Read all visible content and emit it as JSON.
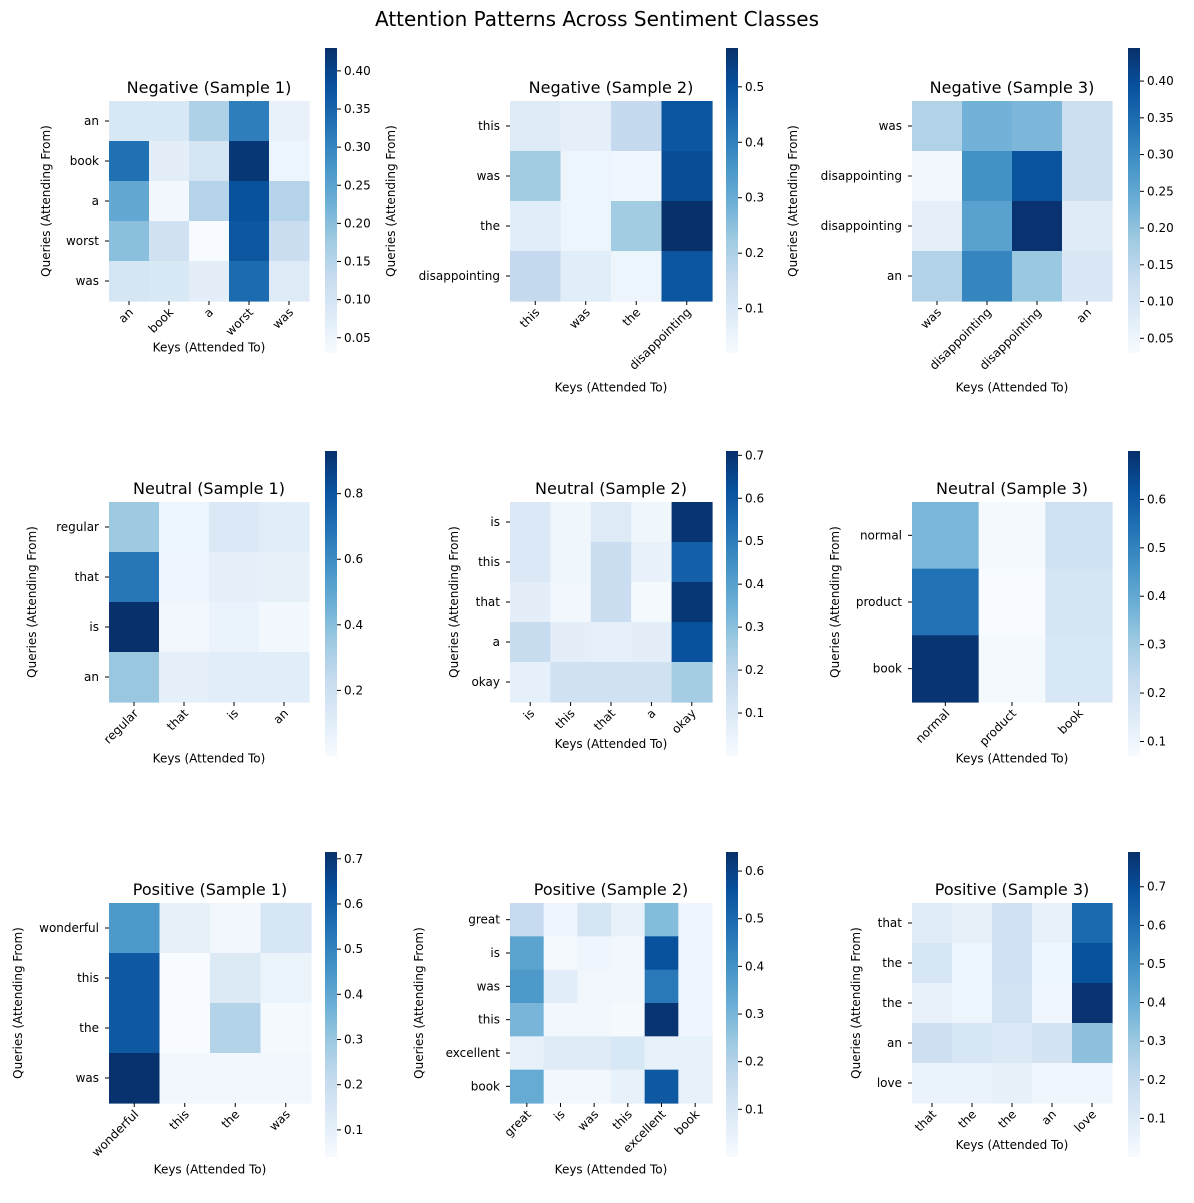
{
  "chart_data": {
    "title": "Attention Patterns Across Sentiment Classes",
    "type": "heatmap",
    "colormap": "Blues",
    "panels": [
      {
        "title": "Negative (Sample 1)",
        "xlabel": "Keys (Attended To)",
        "ylabel": "Queries (Attending From)",
        "x_labels": [
          "an",
          "book",
          "a",
          "worst",
          "was"
        ],
        "y_labels": [
          "an",
          "book",
          "a",
          "worst",
          "was"
        ],
        "values": [
          [
            0.09,
            0.09,
            0.16,
            0.31,
            0.06
          ],
          [
            0.33,
            0.07,
            0.1,
            0.42,
            0.05
          ],
          [
            0.24,
            0.04,
            0.15,
            0.38,
            0.15
          ],
          [
            0.2,
            0.11,
            0.03,
            0.37,
            0.12
          ],
          [
            0.1,
            0.09,
            0.07,
            0.34,
            0.08
          ]
        ],
        "vmin": 0.03,
        "vmax": 0.43,
        "cbar_ticks": [
          0.05,
          0.1,
          0.15,
          0.2,
          0.25,
          0.3,
          0.35,
          0.4
        ]
      },
      {
        "title": "Negative (Sample 2)",
        "xlabel": "Keys (Attended To)",
        "ylabel": "Queries (Attending From)",
        "x_labels": [
          "this",
          "was",
          "the",
          "disappointing"
        ],
        "y_labels": [
          "this",
          "was",
          "the",
          "disappointing"
        ],
        "values": [
          [
            0.09,
            0.07,
            0.16,
            0.49
          ],
          [
            0.22,
            0.05,
            0.04,
            0.51
          ],
          [
            0.08,
            0.05,
            0.22,
            0.57
          ],
          [
            0.16,
            0.08,
            0.05,
            0.49
          ]
        ],
        "vmin": 0.02,
        "vmax": 0.57,
        "cbar_ticks": [
          0.1,
          0.2,
          0.3,
          0.4,
          0.5
        ]
      },
      {
        "title": "Negative (Sample 3)",
        "xlabel": "Keys (Attended To)",
        "ylabel": "Queries (Attending From)",
        "x_labels": [
          "was",
          "disappointing",
          "disappointing",
          "an"
        ],
        "y_labels": [
          "was",
          "disappointing",
          "disappointing",
          "an"
        ],
        "values": [
          [
            0.16,
            0.23,
            0.22,
            0.12
          ],
          [
            0.04,
            0.29,
            0.39,
            0.12
          ],
          [
            0.07,
            0.26,
            0.44,
            0.08
          ],
          [
            0.16,
            0.31,
            0.19,
            0.09
          ]
        ],
        "vmin": 0.03,
        "vmax": 0.445,
        "cbar_ticks": [
          0.05,
          0.1,
          0.15,
          0.2,
          0.25,
          0.3,
          0.35,
          0.4
        ]
      },
      {
        "title": "Neutral (Sample 1)",
        "xlabel": "Keys (Attended To)",
        "ylabel": "Queries (Attending From)",
        "x_labels": [
          "regular",
          "that",
          "is",
          "an"
        ],
        "y_labels": [
          "regular",
          "that",
          "is",
          "an"
        ],
        "values": [
          [
            0.35,
            0.05,
            0.13,
            0.1
          ],
          [
            0.68,
            0.04,
            0.09,
            0.08
          ],
          [
            0.93,
            0.03,
            0.06,
            0.02
          ],
          [
            0.36,
            0.09,
            0.1,
            0.1
          ]
        ],
        "vmin": 0.0,
        "vmax": 0.93,
        "cbar_ticks": [
          0.2,
          0.4,
          0.6,
          0.8
        ]
      },
      {
        "title": "Neutral (Sample 2)",
        "xlabel": "Keys (Attended To)",
        "ylabel": "Queries (Attending From)",
        "x_labels": [
          "is",
          "this",
          "that",
          "a",
          "okay"
        ],
        "y_labels": [
          "is",
          "this",
          "that",
          "a",
          "okay"
        ],
        "values": [
          [
            0.1,
            0.03,
            0.09,
            0.03,
            0.7
          ],
          [
            0.1,
            0.03,
            0.16,
            0.05,
            0.58
          ],
          [
            0.07,
            0.02,
            0.16,
            0.01,
            0.69
          ],
          [
            0.17,
            0.07,
            0.06,
            0.07,
            0.62
          ],
          [
            0.06,
            0.14,
            0.14,
            0.14,
            0.25
          ]
        ],
        "vmin": 0.0,
        "vmax": 0.71,
        "cbar_ticks": [
          0.1,
          0.2,
          0.3,
          0.4,
          0.5,
          0.6,
          0.7
        ]
      },
      {
        "title": "Neutral (Sample 3)",
        "xlabel": "Keys (Attended To)",
        "ylabel": "Queries (Attending From)",
        "x_labels": [
          "normal",
          "product",
          "book"
        ],
        "y_labels": [
          "normal",
          "product",
          "book"
        ],
        "values": [
          [
            0.36,
            0.08,
            0.2
          ],
          [
            0.54,
            0.07,
            0.18
          ],
          [
            0.69,
            0.08,
            0.17
          ]
        ],
        "vmin": 0.07,
        "vmax": 0.7,
        "cbar_ticks": [
          0.1,
          0.2,
          0.3,
          0.4,
          0.5,
          0.6
        ]
      },
      {
        "title": "Positive (Sample 1)",
        "xlabel": "Keys (Attended To)",
        "ylabel": "Queries (Attending From)",
        "x_labels": [
          "wonderful",
          "this",
          "the",
          "was"
        ],
        "y_labels": [
          "wonderful",
          "this",
          "the",
          "was"
        ],
        "values": [
          [
            0.44,
            0.1,
            0.06,
            0.15
          ],
          [
            0.61,
            0.04,
            0.13,
            0.08
          ],
          [
            0.61,
            0.04,
            0.25,
            0.05
          ],
          [
            0.71,
            0.06,
            0.06,
            0.06
          ]
        ],
        "vmin": 0.04,
        "vmax": 0.715,
        "cbar_ticks": [
          0.1,
          0.2,
          0.3,
          0.4,
          0.5,
          0.6,
          0.7
        ]
      },
      {
        "title": "Positive (Sample 2)",
        "xlabel": "Keys (Attended To)",
        "ylabel": "Queries (Attending From)",
        "x_labels": [
          "great",
          "is",
          "was",
          "this",
          "excellent",
          "book"
        ],
        "y_labels": [
          "great",
          "is",
          "was",
          "this",
          "excellent",
          "book"
        ],
        "values": [
          [
            0.16,
            0.03,
            0.11,
            0.05,
            0.28,
            0.03
          ],
          [
            0.35,
            0.01,
            0.03,
            0.02,
            0.56,
            0.03
          ],
          [
            0.38,
            0.07,
            0.02,
            0.02,
            0.46,
            0.03
          ],
          [
            0.3,
            0.02,
            0.02,
            0.01,
            0.63,
            0.03
          ],
          [
            0.05,
            0.08,
            0.08,
            0.1,
            0.05,
            0.05
          ],
          [
            0.33,
            0.02,
            0.02,
            0.05,
            0.54,
            0.05
          ]
        ],
        "vmin": 0.0,
        "vmax": 0.64,
        "cbar_ticks": [
          0.1,
          0.2,
          0.3,
          0.4,
          0.5,
          0.6
        ]
      },
      {
        "title": "Positive (Sample 3)",
        "xlabel": "Keys (Attended To)",
        "ylabel": "Queries (Attending From)",
        "x_labels": [
          "that",
          "the",
          "the",
          "an",
          "love"
        ],
        "y_labels": [
          "that",
          "the",
          "the",
          "an",
          "love"
        ],
        "values": [
          [
            0.09,
            0.07,
            0.16,
            0.06,
            0.62
          ],
          [
            0.13,
            0.04,
            0.16,
            0.04,
            0.69
          ],
          [
            0.06,
            0.04,
            0.15,
            0.03,
            0.78
          ],
          [
            0.17,
            0.13,
            0.11,
            0.14,
            0.33
          ],
          [
            0.05,
            0.05,
            0.07,
            0.03,
            0.03
          ]
        ],
        "vmin": 0.0,
        "vmax": 0.79,
        "cbar_ticks": [
          0.1,
          0.2,
          0.3,
          0.4,
          0.5,
          0.6,
          0.7
        ]
      }
    ]
  }
}
